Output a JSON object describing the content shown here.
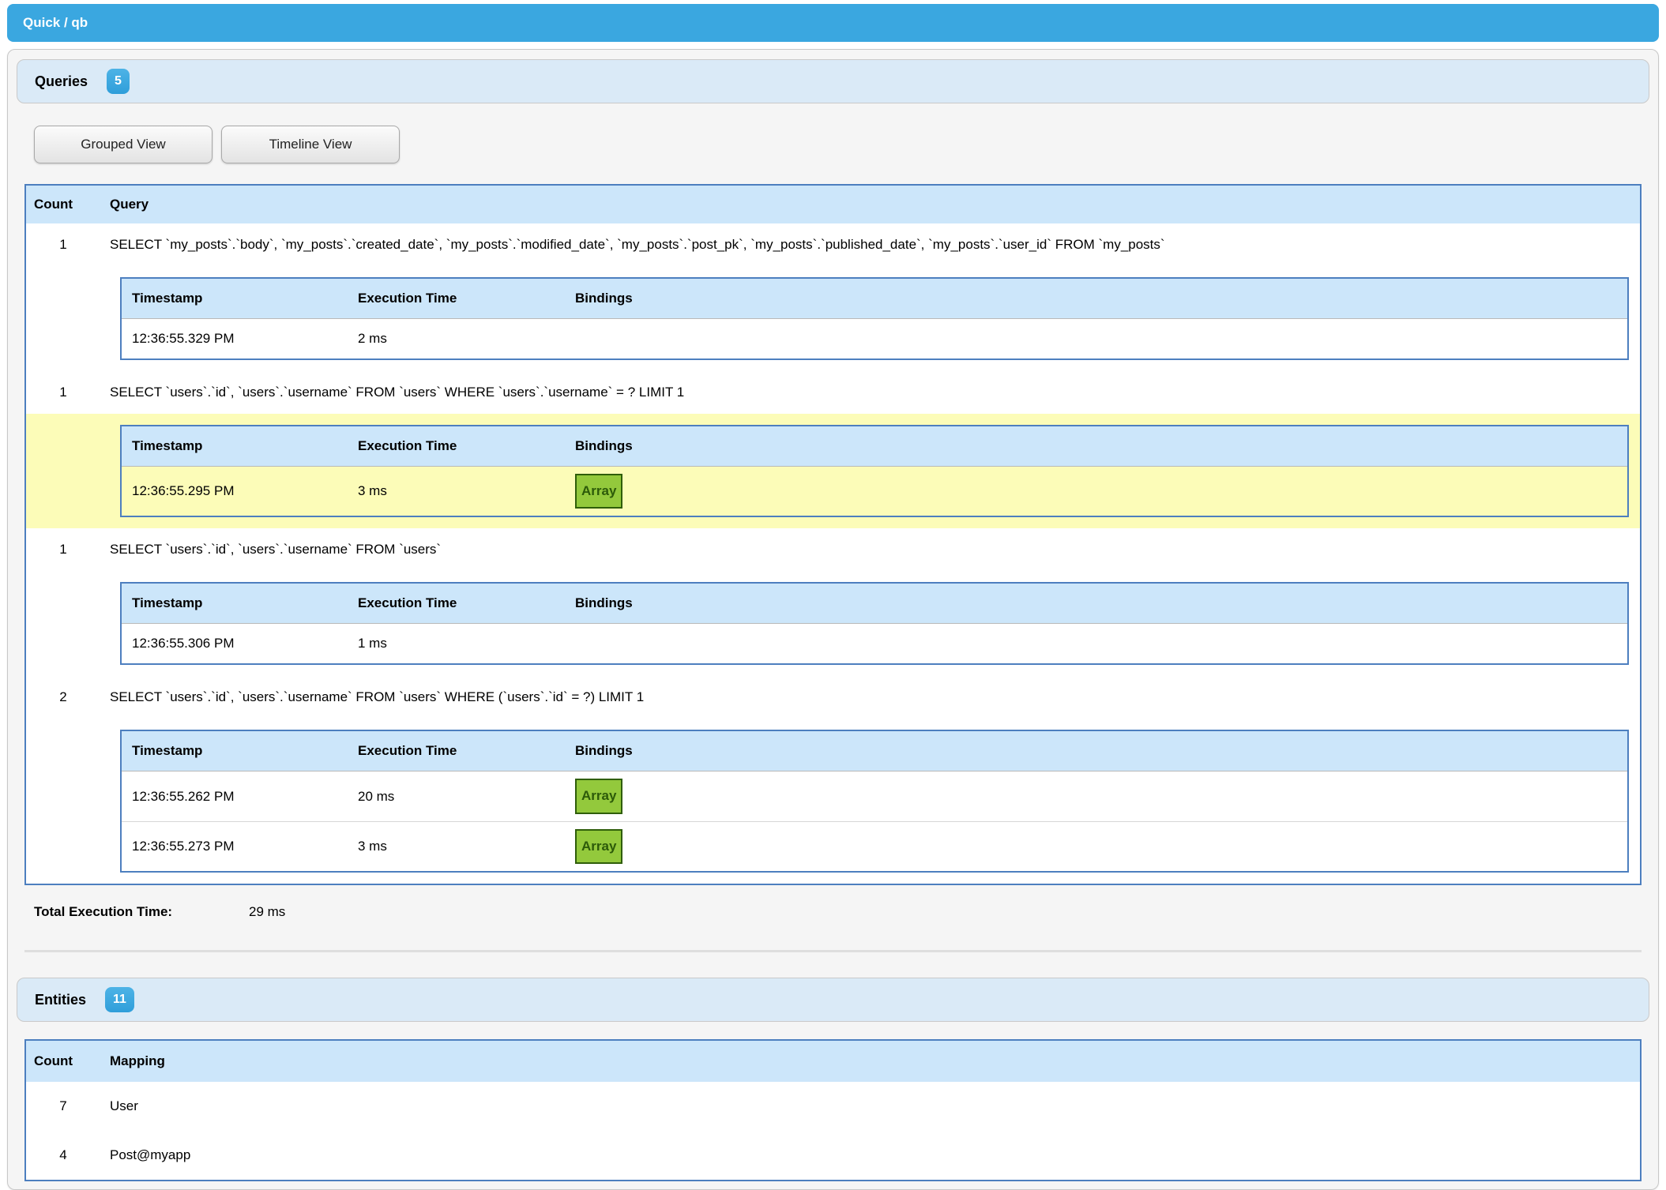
{
  "header": {
    "title": "Quick / qb"
  },
  "colors": {
    "topbar_blue": "#3aa7e0",
    "badge_blue": "#3aa7e0",
    "section_header_bg": "#daeaf7",
    "table_header_bg": "#cce6fa",
    "table_border_blue": "#4d7fbf",
    "highlight_yellow": "#fcfcb8",
    "array_badge_bg": "#93c93c",
    "array_badge_border": "#2f5e0a",
    "panel_bg": "#f5f5f5"
  },
  "queries_panel": {
    "title": "Queries",
    "count_badge": "5",
    "buttons": [
      {
        "label": "Grouped View"
      },
      {
        "label": "Timeline View"
      }
    ],
    "table": {
      "columns": {
        "count": "Count",
        "query": "Query"
      },
      "detail_columns": {
        "timestamp": "Timestamp",
        "execution_time": "Execution Time",
        "bindings": "Bindings"
      },
      "groups": [
        {
          "count": "1",
          "query": "SELECT `my_posts`.`body`, `my_posts`.`created_date`, `my_posts`.`modified_date`, `my_posts`.`post_pk`, `my_posts`.`published_date`, `my_posts`.`user_id` FROM `my_posts`",
          "highlighted": false,
          "executions": [
            {
              "timestamp": "12:36:55.329 PM",
              "execution_time": "2 ms",
              "bindings": ""
            }
          ]
        },
        {
          "count": "1",
          "query": "SELECT `users`.`id`, `users`.`username` FROM `users` WHERE `users`.`username` = ? LIMIT 1",
          "highlighted": true,
          "executions": [
            {
              "timestamp": "12:36:55.295 PM",
              "execution_time": "3 ms",
              "bindings": "Array"
            }
          ]
        },
        {
          "count": "1",
          "query": "SELECT `users`.`id`, `users`.`username` FROM `users`",
          "highlighted": false,
          "executions": [
            {
              "timestamp": "12:36:55.306 PM",
              "execution_time": "1 ms",
              "bindings": ""
            }
          ]
        },
        {
          "count": "2",
          "query": "SELECT `users`.`id`, `users`.`username` FROM `users` WHERE (`users`.`id` = ?) LIMIT 1",
          "highlighted": false,
          "executions": [
            {
              "timestamp": "12:36:55.262 PM",
              "execution_time": "20 ms",
              "bindings": "Array"
            },
            {
              "timestamp": "12:36:55.273 PM",
              "execution_time": "3 ms",
              "bindings": "Array"
            }
          ]
        }
      ]
    },
    "total_label": "Total Execution Time:",
    "total_value": "29 ms"
  },
  "entities_panel": {
    "title": "Entities",
    "count_badge": "11",
    "table": {
      "columns": {
        "count": "Count",
        "mapping": "Mapping"
      },
      "rows": [
        {
          "count": "7",
          "mapping": "User"
        },
        {
          "count": "4",
          "mapping": "Post@myapp"
        }
      ]
    }
  }
}
